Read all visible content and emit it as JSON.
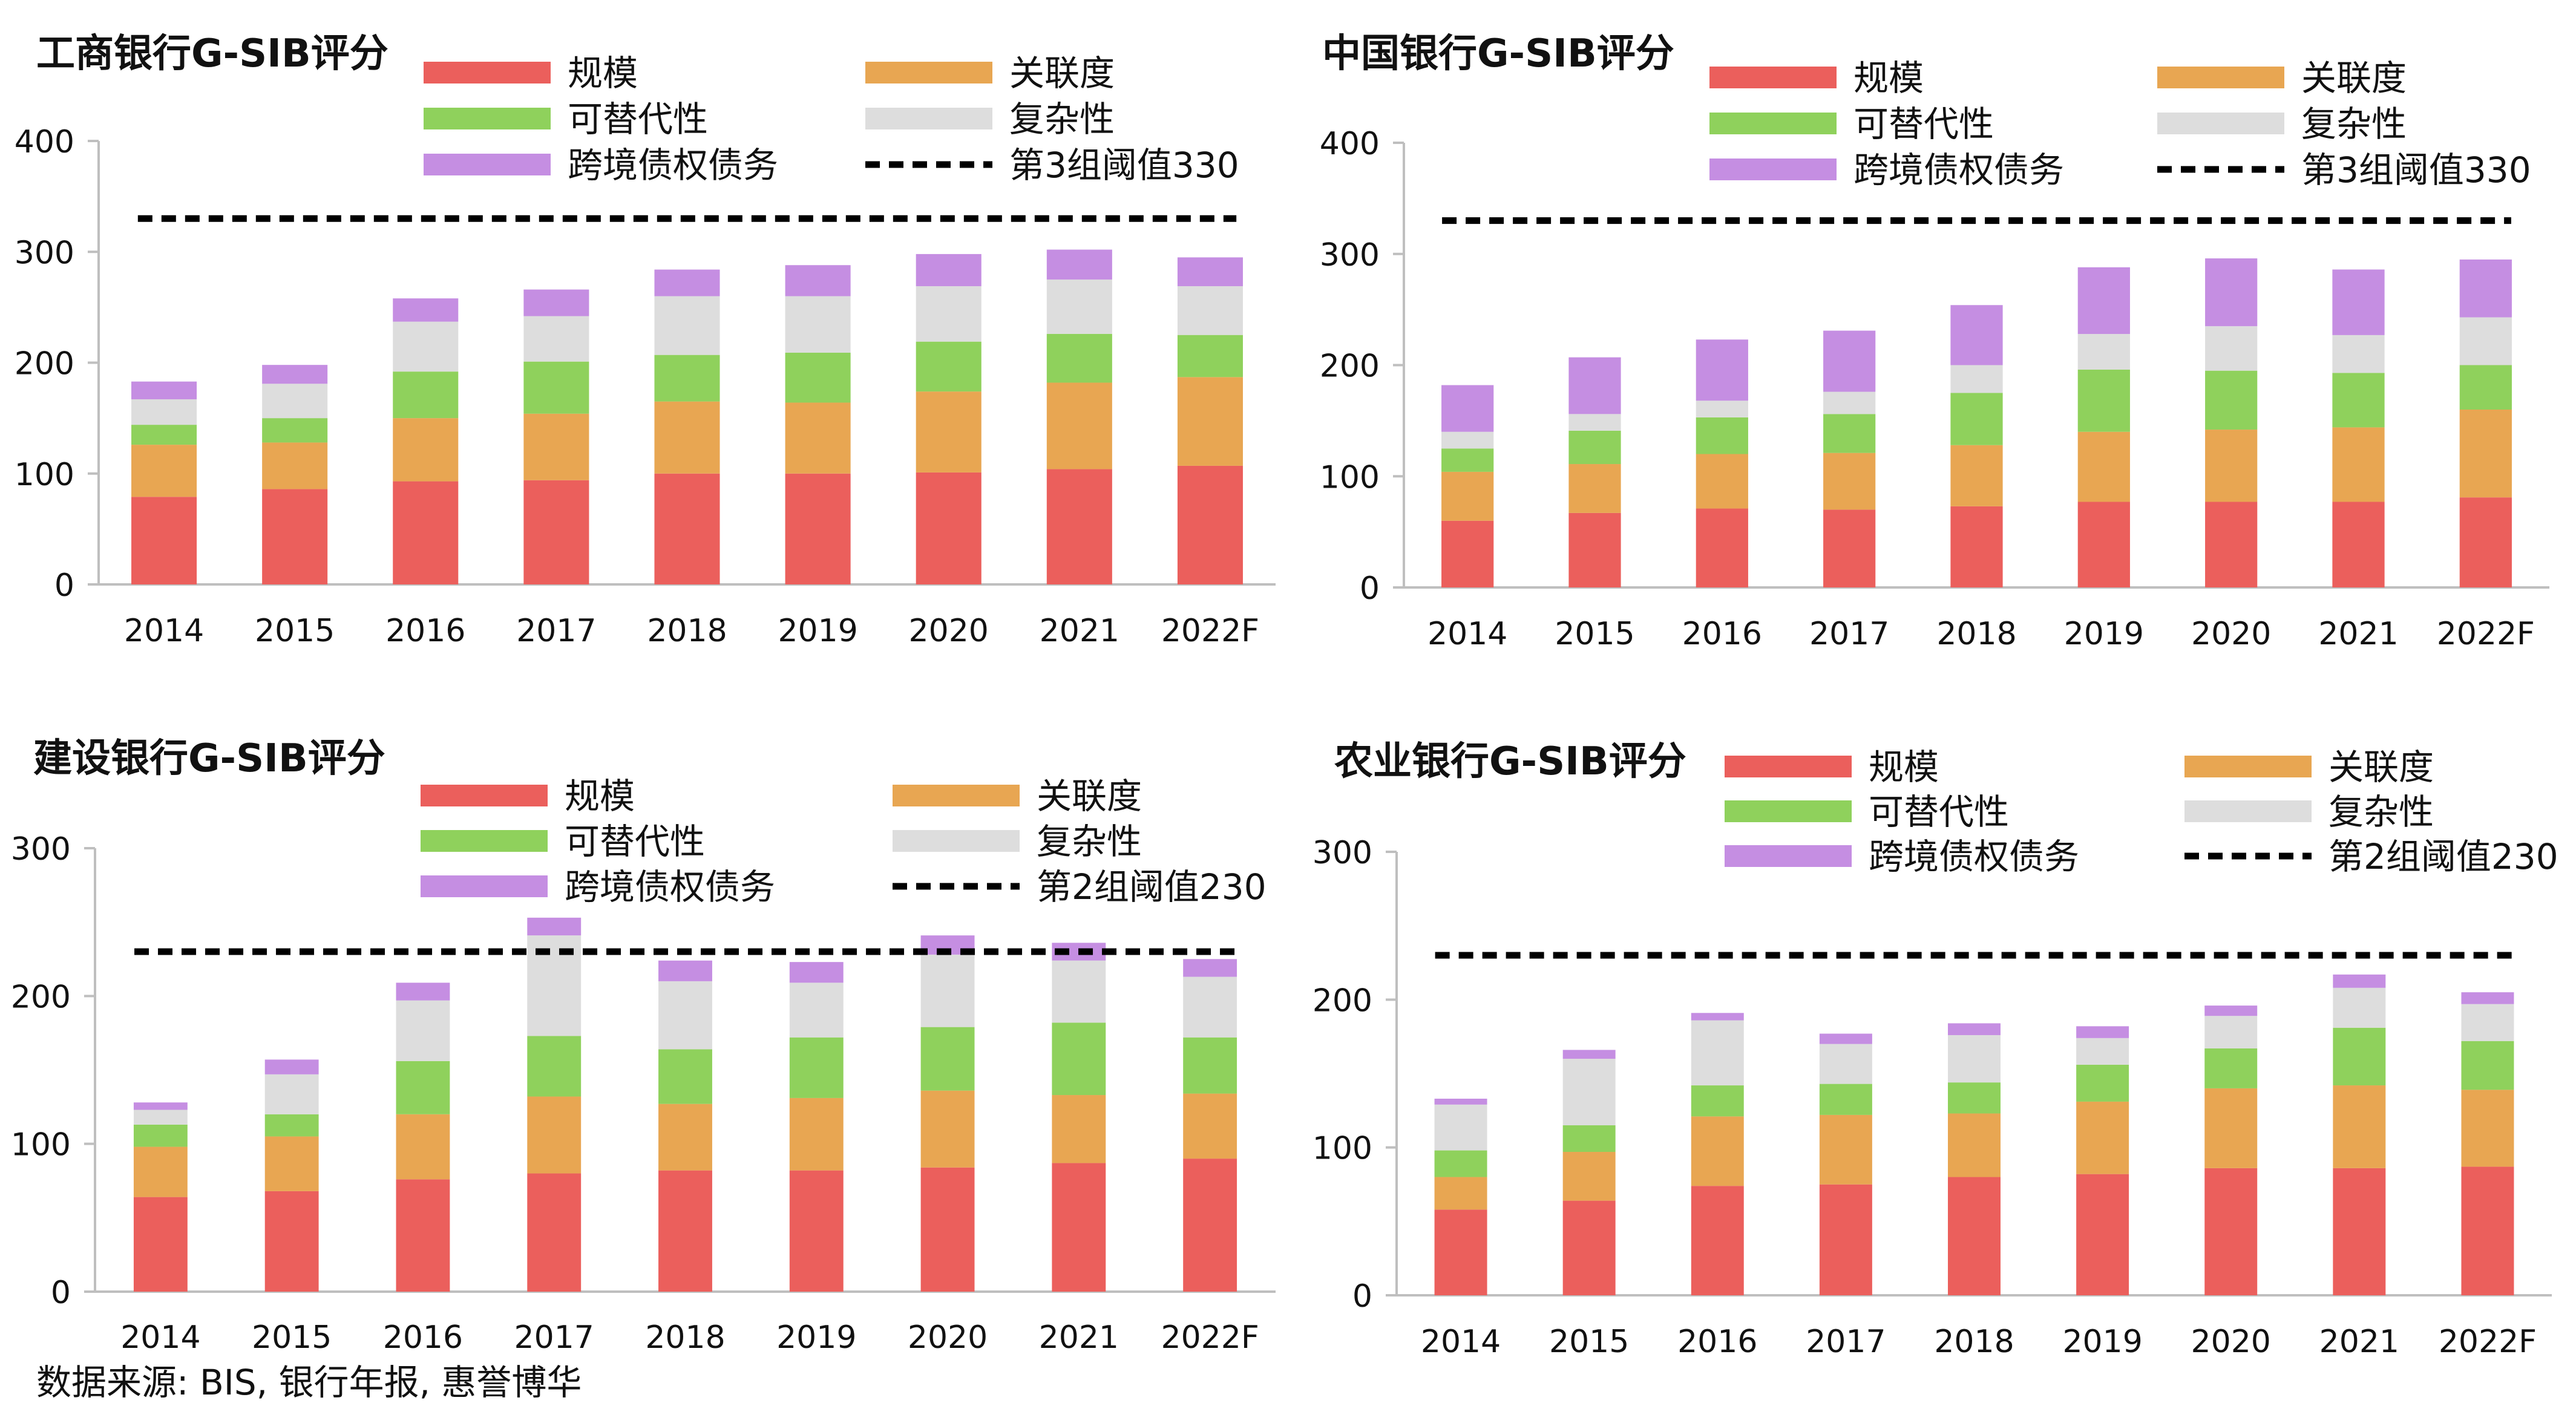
{
  "source_note": "数据来源: BIS, 银行年报, 惠誉博华",
  "colors": {
    "规模": "#EB5F5C",
    "关联度": "#E8A652",
    "可替代性": "#8FD15C",
    "复杂性": "#DDDDDD",
    "跨境债权债务": "#C58EE2",
    "threshold": "#000000",
    "axis": "#BFBFBF"
  },
  "chart_data": [
    {
      "type": "bar",
      "stacked": true,
      "title": "工商银行G-SIB评分",
      "categories": [
        "2014",
        "2015",
        "2016",
        "2017",
        "2018",
        "2019",
        "2020",
        "2021",
        "2022F"
      ],
      "ylim": [
        0,
        400
      ],
      "yticks": [
        0,
        100,
        200,
        300,
        400
      ],
      "legend_order": [
        "规模",
        "关联度",
        "可替代性",
        "复杂性",
        "跨境债权债务",
        "第3组阈值330"
      ],
      "series": [
        {
          "name": "规模",
          "values": [
            79,
            86,
            93,
            94,
            100,
            100,
            101,
            104,
            107
          ]
        },
        {
          "name": "关联度",
          "values": [
            47,
            42,
            57,
            60,
            65,
            64,
            73,
            78,
            80
          ]
        },
        {
          "name": "可替代性",
          "values": [
            18,
            22,
            42,
            47,
            42,
            45,
            45,
            44,
            38
          ]
        },
        {
          "name": "复杂性",
          "values": [
            23,
            31,
            45,
            41,
            53,
            51,
            50,
            49,
            44
          ]
        },
        {
          "name": "跨境债权债务",
          "values": [
            16,
            17,
            21,
            24,
            24,
            28,
            29,
            27,
            26
          ]
        }
      ],
      "threshold": {
        "name": "第3组阈值330",
        "value": 330
      }
    },
    {
      "type": "bar",
      "stacked": true,
      "title": "中国银行G-SIB评分",
      "categories": [
        "2014",
        "2015",
        "2016",
        "2017",
        "2018",
        "2019",
        "2020",
        "2021",
        "2022F"
      ],
      "ylim": [
        0,
        400
      ],
      "yticks": [
        0,
        100,
        200,
        300,
        400
      ],
      "legend_order": [
        "规模",
        "关联度",
        "可替代性",
        "复杂性",
        "跨境债权债务",
        "第3组阈值330"
      ],
      "series": [
        {
          "name": "规模",
          "values": [
            60,
            67,
            71,
            70,
            73,
            77,
            77,
            77,
            81
          ]
        },
        {
          "name": "关联度",
          "values": [
            44,
            44,
            49,
            51,
            55,
            63,
            65,
            67,
            79
          ]
        },
        {
          "name": "可替代性",
          "values": [
            21,
            30,
            33,
            35,
            47,
            56,
            53,
            49,
            40
          ]
        },
        {
          "name": "复杂性",
          "values": [
            15,
            15,
            15,
            20,
            25,
            32,
            40,
            34,
            43
          ]
        },
        {
          "name": "跨境债权债务",
          "values": [
            42,
            51,
            55,
            55,
            54,
            60,
            61,
            59,
            52
          ]
        }
      ],
      "threshold": {
        "name": "第3组阈值330",
        "value": 330
      }
    },
    {
      "type": "bar",
      "stacked": true,
      "title": "建设银行G-SIB评分",
      "categories": [
        "2014",
        "2015",
        "2016",
        "2017",
        "2018",
        "2019",
        "2020",
        "2021",
        "2022F"
      ],
      "ylim": [
        0,
        300
      ],
      "yticks": [
        0,
        100,
        200,
        300
      ],
      "legend_order": [
        "规模",
        "关联度",
        "可替代性",
        "复杂性",
        "跨境债权债务",
        "第2组阈值230"
      ],
      "series": [
        {
          "name": "规模",
          "values": [
            64,
            68,
            76,
            80,
            82,
            82,
            84,
            87,
            90
          ]
        },
        {
          "name": "关联度",
          "values": [
            34,
            37,
            44,
            52,
            45,
            49,
            52,
            46,
            44
          ]
        },
        {
          "name": "可替代性",
          "values": [
            15,
            15,
            36,
            41,
            37,
            41,
            43,
            49,
            38
          ]
        },
        {
          "name": "复杂性",
          "values": [
            10,
            27,
            41,
            68,
            46,
            37,
            49,
            42,
            41
          ]
        },
        {
          "name": "跨境债权债务",
          "values": [
            5,
            10,
            12,
            12,
            14,
            14,
            13,
            12,
            12
          ]
        }
      ],
      "threshold": {
        "name": "第2组阈值230",
        "value": 230
      }
    },
    {
      "type": "bar",
      "stacked": true,
      "title": "农业银行G-SIB评分",
      "categories": [
        "2014",
        "2015",
        "2016",
        "2017",
        "2018",
        "2019",
        "2020",
        "2021",
        "2022F"
      ],
      "ylim": [
        0,
        300
      ],
      "yticks": [
        0,
        100,
        200,
        300
      ],
      "legend_order": [
        "规模",
        "关联度",
        "可替代性",
        "复杂性",
        "跨境债权债务",
        "第2组阈值230"
      ],
      "series": [
        {
          "name": "规模",
          "values": [
            58,
            64,
            74,
            75,
            80,
            82,
            86,
            86,
            87
          ]
        },
        {
          "name": "关联度",
          "values": [
            22,
            33,
            47,
            47,
            43,
            49,
            54,
            56,
            52
          ]
        },
        {
          "name": "可替代性",
          "values": [
            18,
            18,
            21,
            21,
            21,
            25,
            27,
            39,
            33
          ]
        },
        {
          "name": "复杂性",
          "values": [
            31,
            45,
            44,
            27,
            32,
            18,
            22,
            27,
            25
          ]
        },
        {
          "name": "跨境债权债务",
          "values": [
            4,
            6,
            5,
            7,
            8,
            8,
            7,
            9,
            8
          ]
        }
      ],
      "threshold": {
        "name": "第2组阈值230",
        "value": 230
      }
    }
  ]
}
